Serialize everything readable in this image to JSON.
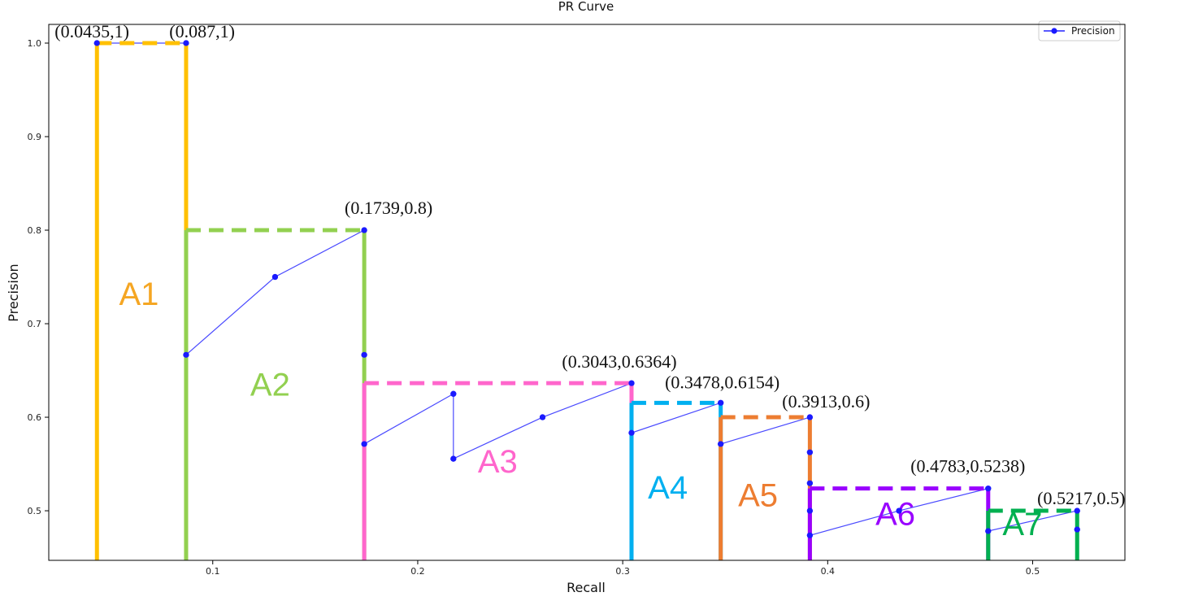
{
  "chart_data": {
    "type": "line",
    "title": "PR Curve",
    "xlabel": "Recall",
    "ylabel": "Precision",
    "xlim": [
      0.02,
      0.545
    ],
    "ylim": [
      0.447,
      1.02
    ],
    "grid": false,
    "legend_position": "top-right",
    "x_ticks": [
      0.1,
      0.2,
      0.3,
      0.4,
      0.5
    ],
    "x_tick_labels": [
      "0.1",
      "0.2",
      "0.3",
      "0.4",
      "0.5"
    ],
    "y_ticks": [
      0.5,
      0.6,
      0.7,
      0.8,
      0.9,
      1.0
    ],
    "y_tick_labels": [
      "0.5",
      "0.6",
      "0.7",
      "0.8",
      "0.9",
      "1.0"
    ],
    "series": [
      {
        "name": "Precision",
        "color": "#0000ff",
        "x": [
          0.0435,
          0.087,
          0.087,
          0.1304,
          0.1739,
          0.1739,
          0.1739,
          0.2174,
          0.2174,
          0.2609,
          0.3043,
          0.3043,
          0.3478,
          0.3478,
          0.3913,
          0.3913,
          0.3913,
          0.3913,
          0.3913,
          0.4348,
          0.4783,
          0.4783,
          0.5217,
          0.5217
        ],
        "y": [
          1.0,
          1.0,
          0.6667,
          0.75,
          0.8,
          0.6667,
          0.5714,
          0.625,
          0.5556,
          0.6,
          0.6364,
          0.5833,
          0.6154,
          0.5714,
          0.6,
          0.5625,
          0.5294,
          0.5,
          0.4737,
          0.5,
          0.5238,
          0.4783,
          0.5,
          0.48
        ]
      }
    ],
    "regions": [
      {
        "label": "A1",
        "color": "#FFC000",
        "text_color": "#F5A623",
        "x0": 0.0435,
        "x1": 0.087,
        "y": 1.0,
        "label_pos": [
          0.064,
          0.72
        ]
      },
      {
        "label": "A2",
        "color": "#92D050",
        "text_color": "#92D050",
        "x0": 0.087,
        "x1": 0.1739,
        "y": 0.8,
        "label_pos": [
          0.128,
          0.623
        ]
      },
      {
        "label": "A3",
        "color": "#FF66CC",
        "text_color": "#FF66CC",
        "x0": 0.1739,
        "x1": 0.3043,
        "y": 0.6364,
        "label_pos": [
          0.239,
          0.541
        ]
      },
      {
        "label": "A4",
        "color": "#00B0F0",
        "text_color": "#00B0F0",
        "x0": 0.3043,
        "x1": 0.3478,
        "y": 0.6154,
        "label_pos": [
          0.322,
          0.513
        ]
      },
      {
        "label": "A5",
        "color": "#ED7D31",
        "text_color": "#ED7D31",
        "x0": 0.3478,
        "x1": 0.3913,
        "y": 0.6,
        "label_pos": [
          0.366,
          0.505
        ]
      },
      {
        "label": "A6",
        "color": "#9900FF",
        "text_color": "#9900FF",
        "x0": 0.3913,
        "x1": 0.4783,
        "y": 0.5238,
        "label_pos": [
          0.433,
          0.485
        ]
      },
      {
        "label": "A7",
        "color": "#00B050",
        "text_color": "#00B050",
        "x0": 0.4783,
        "x1": 0.5217,
        "y": 0.5,
        "label_pos": [
          0.495,
          0.474
        ]
      }
    ],
    "annotations": [
      {
        "text": "(0.0435,1)",
        "x": 0.0435,
        "y": 1.0,
        "anchor": "start-left"
      },
      {
        "text": "(0.087,1)",
        "x": 0.087,
        "y": 1.0,
        "anchor": "start-right"
      },
      {
        "text": "(0.1739,0.8)",
        "x": 0.1739,
        "y": 0.8,
        "anchor": "above"
      },
      {
        "text": "(0.3043,0.6364)",
        "x": 0.3043,
        "y": 0.6364,
        "anchor": "above-left"
      },
      {
        "text": "(0.3478,0.6154)",
        "x": 0.3478,
        "y": 0.6154,
        "anchor": "above"
      },
      {
        "text": "(0.3913,0.6)",
        "x": 0.3913,
        "y": 0.6,
        "anchor": "above"
      },
      {
        "text": "(0.4783,0.5238)",
        "x": 0.4783,
        "y": 0.5238,
        "anchor": "above"
      },
      {
        "text": "(0.5217,0.5)",
        "x": 0.5217,
        "y": 0.5,
        "anchor": "above"
      }
    ]
  }
}
